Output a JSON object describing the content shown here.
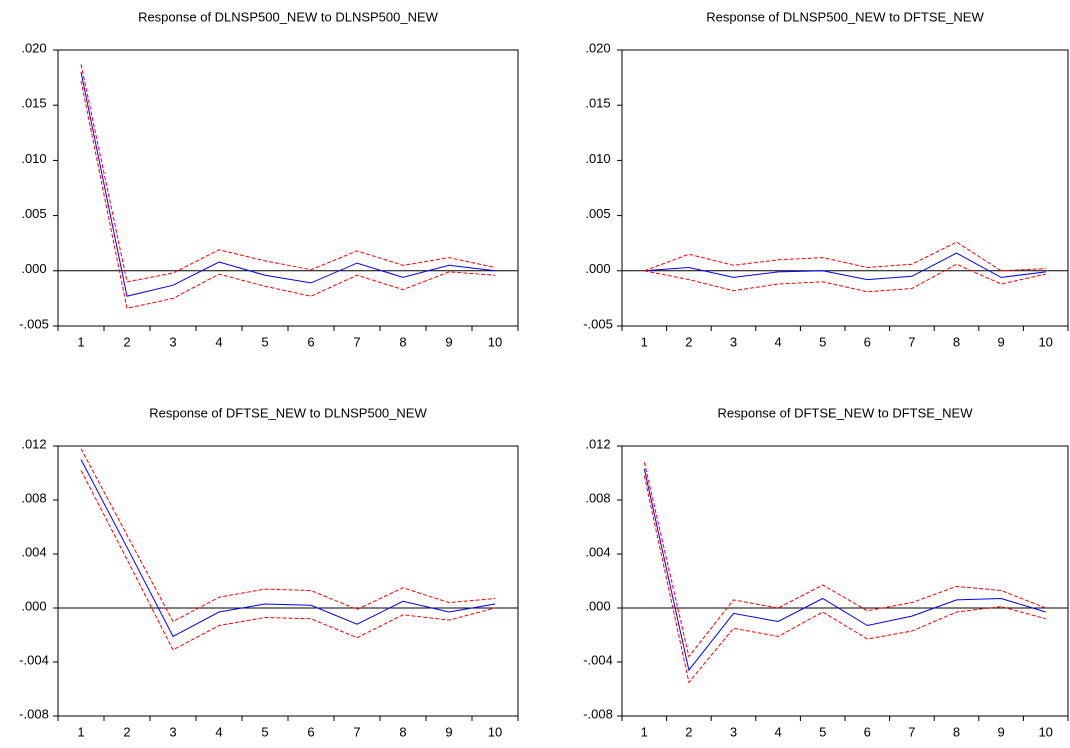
{
  "chart_data": [
    {
      "type": "line",
      "title": "Response of DLNSP500_NEW to DLNSP500_NEW",
      "categories": [
        "1",
        "2",
        "3",
        "4",
        "5",
        "6",
        "7",
        "8",
        "9",
        "10"
      ],
      "series": [
        {
          "color": "#0000ff",
          "linestyle": "solid",
          "values": [
            0.018,
            -0.0023,
            -0.0013,
            0.0008,
            -0.0004,
            -0.0011,
            0.0007,
            -0.0006,
            0.0005,
            0.0
          ]
        },
        {
          "color": "#ff0000",
          "linestyle": "dashed",
          "values": [
            0.0187,
            -0.001,
            -0.0002,
            0.0019,
            0.0009,
            0.0001,
            0.0018,
            0.0005,
            0.0012,
            0.0003
          ]
        },
        {
          "color": "#ff0000",
          "linestyle": "dashed",
          "values": [
            0.0172,
            -0.0034,
            -0.0025,
            -0.0003,
            -0.0014,
            -0.0023,
            -0.0004,
            -0.0017,
            -0.0001,
            -0.0004
          ]
        }
      ],
      "ylim": [
        -0.005,
        0.02
      ],
      "yticks": [
        {
          "value": -0.005,
          "label": "-.005"
        },
        {
          "value": 0.0,
          "label": ".000"
        },
        {
          "value": 0.005,
          "label": ".005"
        },
        {
          "value": 0.01,
          "label": ".010"
        },
        {
          "value": 0.015,
          "label": ".015"
        },
        {
          "value": 0.02,
          "label": ".020"
        }
      ],
      "zero_line": true
    },
    {
      "type": "line",
      "title": "Response of DLNSP500_NEW to DFTSE_NEW",
      "categories": [
        "1",
        "2",
        "3",
        "4",
        "5",
        "6",
        "7",
        "8",
        "9",
        "10"
      ],
      "series": [
        {
          "color": "#0000ff",
          "linestyle": "solid",
          "values": [
            0.0,
            0.0003,
            -0.0006,
            -0.0001,
            0.0,
            -0.0008,
            -0.0005,
            0.0016,
            -0.0006,
            -0.0001
          ]
        },
        {
          "color": "#ff0000",
          "linestyle": "dashed",
          "values": [
            0.0,
            0.0015,
            0.0005,
            0.001,
            0.0012,
            0.0003,
            0.0006,
            0.0026,
            0.0,
            0.0002
          ]
        },
        {
          "color": "#ff0000",
          "linestyle": "dashed",
          "values": [
            0.0,
            -0.0008,
            -0.0018,
            -0.0012,
            -0.001,
            -0.0019,
            -0.0016,
            0.0006,
            -0.0012,
            -0.0003
          ]
        }
      ],
      "ylim": [
        -0.005,
        0.02
      ],
      "yticks": [
        {
          "value": -0.005,
          "label": "-.005"
        },
        {
          "value": 0.0,
          "label": ".000"
        },
        {
          "value": 0.005,
          "label": ".005"
        },
        {
          "value": 0.01,
          "label": ".010"
        },
        {
          "value": 0.015,
          "label": ".015"
        },
        {
          "value": 0.02,
          "label": ".020"
        }
      ],
      "zero_line": true
    },
    {
      "type": "line",
      "title": "Response of DFTSE_NEW to DLNSP500_NEW",
      "categories": [
        "1",
        "2",
        "3",
        "4",
        "5",
        "6",
        "7",
        "8",
        "9",
        "10"
      ],
      "series": [
        {
          "color": "#0000ff",
          "linestyle": "solid",
          "values": [
            0.011,
            0.0045,
            -0.0021,
            -0.0003,
            0.0003,
            0.0002,
            -0.0012,
            0.0005,
            -0.0003,
            0.0003
          ]
        },
        {
          "color": "#ff0000",
          "linestyle": "dashed",
          "values": [
            0.0118,
            0.0054,
            -0.001,
            0.0008,
            0.0014,
            0.0013,
            -0.0001,
            0.0015,
            0.0004,
            0.0007
          ]
        },
        {
          "color": "#ff0000",
          "linestyle": "dashed",
          "values": [
            0.0102,
            0.0036,
            -0.0031,
            -0.0013,
            -0.0007,
            -0.0008,
            -0.0022,
            -0.0005,
            -0.0009,
            0.0
          ]
        }
      ],
      "ylim": [
        -0.008,
        0.012
      ],
      "yticks": [
        {
          "value": -0.008,
          "label": "-.008"
        },
        {
          "value": -0.004,
          "label": "-.004"
        },
        {
          "value": 0.0,
          "label": ".000"
        },
        {
          "value": 0.004,
          "label": ".004"
        },
        {
          "value": 0.008,
          "label": ".008"
        },
        {
          "value": 0.012,
          "label": ".012"
        }
      ],
      "zero_line": true
    },
    {
      "type": "line",
      "title": "Response of DFTSE_NEW to DFTSE_NEW",
      "categories": [
        "1",
        "2",
        "3",
        "4",
        "5",
        "6",
        "7",
        "8",
        "9",
        "10"
      ],
      "series": [
        {
          "color": "#0000ff",
          "linestyle": "solid",
          "values": [
            0.0103,
            -0.0046,
            -0.0004,
            -0.001,
            0.0007,
            -0.0013,
            -0.0006,
            0.0006,
            0.0007,
            -0.0003
          ]
        },
        {
          "color": "#ff0000",
          "linestyle": "dashed",
          "values": [
            0.0108,
            -0.0036,
            0.0006,
            0.0,
            0.0017,
            -0.0002,
            0.0004,
            0.0016,
            0.0013,
            0.0
          ]
        },
        {
          "color": "#ff0000",
          "linestyle": "dashed",
          "values": [
            0.0098,
            -0.0055,
            -0.0015,
            -0.0021,
            -0.0003,
            -0.0023,
            -0.0017,
            -0.0003,
            0.0001,
            -0.0008
          ]
        }
      ],
      "ylim": [
        -0.008,
        0.012
      ],
      "yticks": [
        {
          "value": -0.008,
          "label": "-.008"
        },
        {
          "value": -0.004,
          "label": "-.004"
        },
        {
          "value": 0.0,
          "label": ".000"
        },
        {
          "value": 0.004,
          "label": ".004"
        },
        {
          "value": 0.008,
          "label": ".008"
        },
        {
          "value": 0.012,
          "label": ".012"
        }
      ],
      "zero_line": true
    }
  ]
}
